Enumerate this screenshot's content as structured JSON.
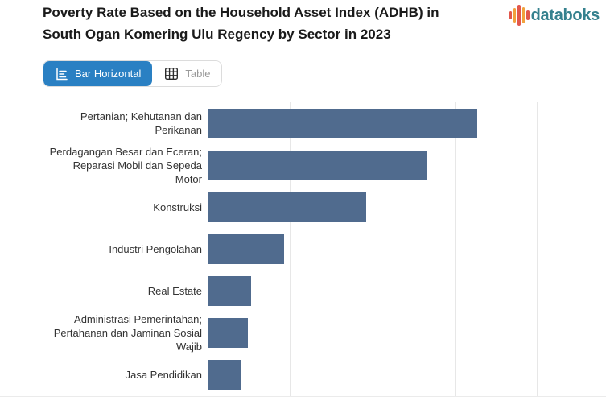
{
  "header": {
    "title": "Poverty Rate Based on the Household Asset Index (ADHB) in South Ogan Komering Ulu Regency by Sector in 2023",
    "brand": {
      "name": "databoks",
      "text_color": "#35818e",
      "icon_bar_colors": [
        "#e2574c",
        "#f2a13d",
        "#e2574c",
        "#f2a13d",
        "#e2574c"
      ],
      "icon_bar_heights": [
        10,
        18,
        26,
        20,
        12
      ]
    }
  },
  "toolbar": {
    "bar_horizontal_label": "Bar Horizontal",
    "table_label": "Table",
    "active_color": "#2a80c3",
    "inactive_text_color": "#999999"
  },
  "chart_data": {
    "type": "bar",
    "orientation": "horizontal",
    "title": "Poverty Rate Based on the Household Asset Index (ADHB) in South Ogan Komering Ulu Regency by Sector in 2023",
    "categories": [
      "Pertanian; Kehutanan dan Perikanan",
      "Perdagangan Besar dan Eceran; Reparasi Mobil dan Sepeda Motor",
      "Konstruksi",
      "Industri Pengolahan",
      "Real Estate",
      "Administrasi Pemerintahan; Pertahanan dan Jaminan Sosial Wajib",
      "Jasa Pendidikan"
    ],
    "values": [
      32.8,
      26.7,
      19.3,
      9.3,
      5.3,
      4.9,
      4.1
    ],
    "xlabel": "",
    "ylabel": "",
    "xlim": [
      0,
      48.4
    ],
    "gridline_values": [
      0,
      10,
      20,
      30,
      40
    ],
    "grid": true,
    "legend": false,
    "bar_color": "#506b8e"
  }
}
